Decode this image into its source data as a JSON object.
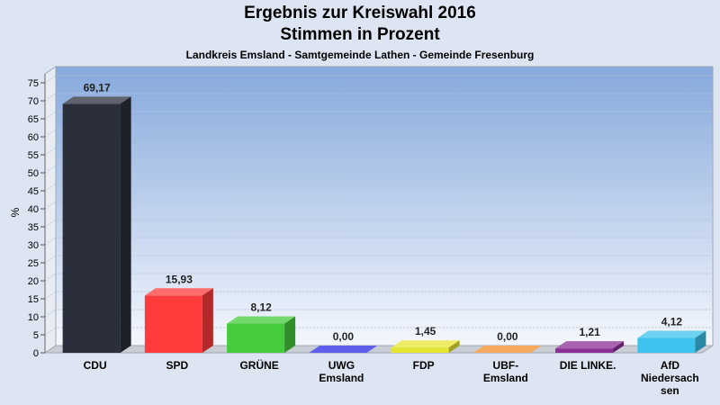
{
  "chart_data": {
    "type": "bar",
    "title": "Ergebnis zur Kreiswahl 2016",
    "subtitle": "Stimmen in Prozent",
    "caption": "Landkreis Emsland - Samtgemeinde Lathen - Gemeinde Fresenburg",
    "ylabel": "%",
    "ylim": [
      0,
      78
    ],
    "yticks": [
      0,
      5,
      10,
      15,
      20,
      25,
      30,
      35,
      40,
      45,
      50,
      55,
      60,
      65,
      70,
      75
    ],
    "grid": true,
    "categories": [
      [
        "CDU"
      ],
      [
        "SPD"
      ],
      [
        "GRÜNE"
      ],
      [
        "UWG",
        "Emsland"
      ],
      [
        "FDP"
      ],
      [
        "UBF-",
        "Emsland"
      ],
      [
        "DIE LINKE."
      ],
      [
        "AfD",
        "Niedersach",
        "sen"
      ]
    ],
    "values": [
      69.17,
      15.93,
      8.12,
      0.0,
      1.45,
      0.0,
      1.21,
      4.12
    ],
    "value_labels": [
      "69,17",
      "15,93",
      "8,12",
      "0,00",
      "1,45",
      "0,00",
      "1,21",
      "4,12"
    ],
    "colors": [
      "#2b2f3c",
      "#ff3b3b",
      "#45cc3c",
      "#2a2ae6",
      "#e6e632",
      "#f08c28",
      "#8a2f96",
      "#3cc3ee"
    ]
  }
}
